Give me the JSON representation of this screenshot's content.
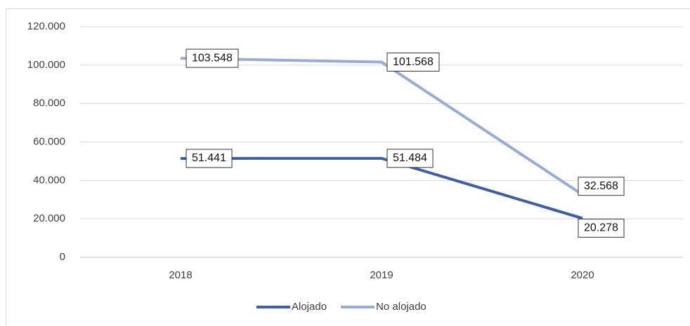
{
  "chart_data": {
    "type": "line",
    "categories": [
      "2018",
      "2019",
      "2020"
    ],
    "series": [
      {
        "name": "Alojado",
        "color": "#3d5fa8",
        "values": [
          51441,
          51484,
          20278
        ],
        "value_labels": [
          "51.441",
          "51.484",
          "20.278"
        ]
      },
      {
        "name": "No alojado",
        "color": "#98acd9",
        "values": [
          103548,
          101568,
          32568
        ],
        "value_labels": [
          "103.548",
          "101.568",
          "32.568"
        ]
      }
    ],
    "ylim": [
      0,
      120000
    ],
    "yticks": [
      0,
      {
        "value": 20000,
        "label": "20.000"
      },
      {
        "value": 40000,
        "label": "40.000"
      },
      {
        "value": 60000,
        "label": "60.000"
      },
      {
        "value": 80000,
        "label": "80.000"
      },
      {
        "value": 100000,
        "label": "100.000"
      },
      {
        "value": 120000,
        "label": "120.000"
      }
    ],
    "grid": true,
    "legend": "bottom"
  }
}
